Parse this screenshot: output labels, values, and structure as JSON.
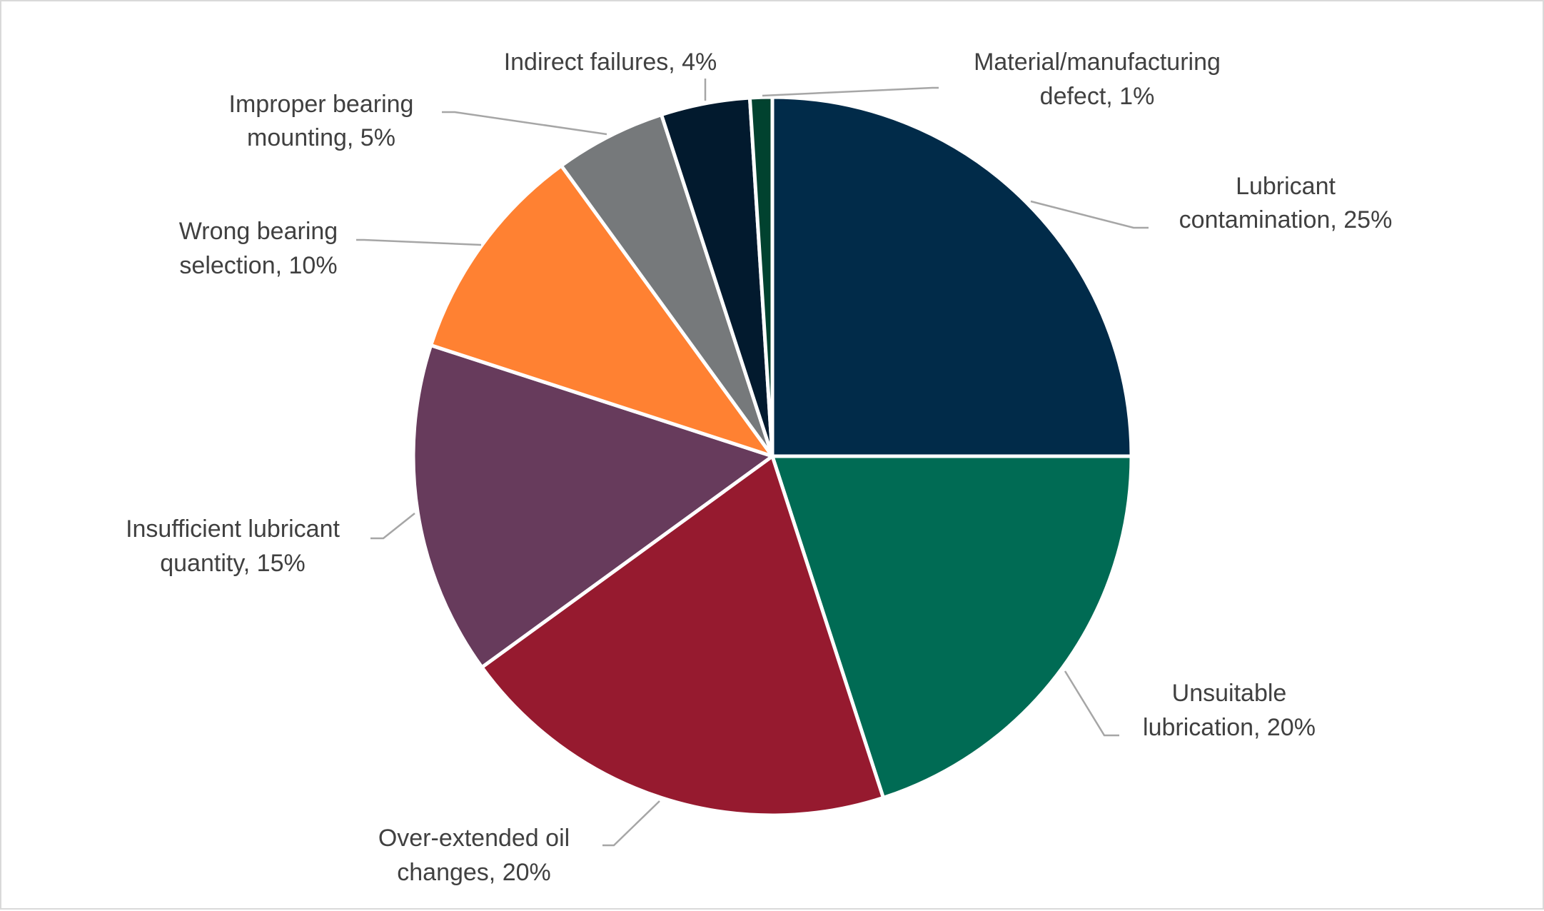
{
  "chart_data": {
    "type": "pie",
    "title": "",
    "start_angle": "12 o'clock",
    "direction": "clockwise",
    "legend": "none",
    "slices": [
      {
        "label_lines": [
          "Lubricant",
          "contamination, 25%"
        ],
        "value": 25,
        "color": "#012B49"
      },
      {
        "label_lines": [
          "Unsuitable",
          "lubrication, 20%"
        ],
        "value": 20,
        "color": "#006B54"
      },
      {
        "label_lines": [
          "Over-extended oil",
          "changes, 20%"
        ],
        "value": 20,
        "color": "#961A2F"
      },
      {
        "label_lines": [
          "Insufficient lubricant",
          "quantity, 15%"
        ],
        "value": 15,
        "color": "#673B5C"
      },
      {
        "label_lines": [
          "Wrong bearing",
          "selection, 10%"
        ],
        "value": 10,
        "color": "#FF8132"
      },
      {
        "label_lines": [
          "Improper bearing",
          "mounting, 5%"
        ],
        "value": 5,
        "color": "#76797B"
      },
      {
        "label_lines": [
          "Indirect failures, 4%"
        ],
        "value": 4,
        "color": "#021A2E"
      },
      {
        "label_lines": [
          "Material/manufacturing",
          "defect, 1%"
        ],
        "value": 1,
        "color": "#01422F"
      }
    ]
  }
}
